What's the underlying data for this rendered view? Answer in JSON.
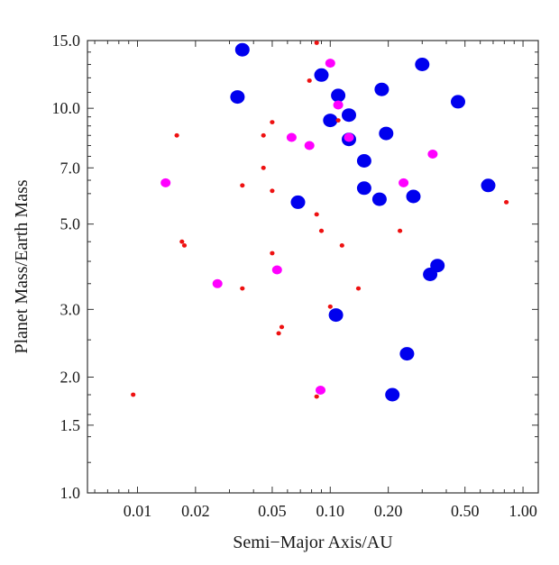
{
  "chart_data": {
    "type": "scatter",
    "title": "",
    "xlabel": "Semi−Major Axis/AU",
    "ylabel": "Planet Mass/Earth Mass",
    "xscale": "log",
    "yscale": "log",
    "xlim": [
      0.0055,
      1.2
    ],
    "ylim": [
      1.0,
      15.0
    ],
    "xticks": [
      {
        "value": 0.01,
        "label": "0.01"
      },
      {
        "value": 0.02,
        "label": "0.02"
      },
      {
        "value": 0.05,
        "label": "0.05"
      },
      {
        "value": 0.1,
        "label": "0.10"
      },
      {
        "value": 0.2,
        "label": "0.20"
      },
      {
        "value": 0.5,
        "label": "0.50"
      },
      {
        "value": 1.0,
        "label": "1.00"
      }
    ],
    "yticks": [
      {
        "value": 1.0,
        "label": "1.0"
      },
      {
        "value": 1.5,
        "label": "1.5"
      },
      {
        "value": 2.0,
        "label": "2.0"
      },
      {
        "value": 3.0,
        "label": "3.0"
      },
      {
        "value": 5.0,
        "label": "5.0"
      },
      {
        "value": 7.0,
        "label": "7.0"
      },
      {
        "value": 10.0,
        "label": "10.0"
      },
      {
        "value": 15.0,
        "label": "15.0"
      }
    ],
    "grid": false,
    "series": [
      {
        "color": "#0000ee",
        "marker_size": "large",
        "points": [
          [
            0.035,
            14.2
          ],
          [
            0.033,
            10.7
          ],
          [
            0.09,
            12.2
          ],
          [
            0.11,
            10.8
          ],
          [
            0.1,
            9.3
          ],
          [
            0.125,
            9.6
          ],
          [
            0.125,
            8.3
          ],
          [
            0.185,
            11.2
          ],
          [
            0.195,
            8.6
          ],
          [
            0.15,
            7.3
          ],
          [
            0.15,
            6.2
          ],
          [
            0.18,
            5.8
          ],
          [
            0.3,
            13.0
          ],
          [
            0.46,
            10.4
          ],
          [
            0.27,
            5.9
          ],
          [
            0.66,
            6.3
          ],
          [
            0.068,
            5.7
          ],
          [
            0.36,
            3.9
          ],
          [
            0.33,
            3.7
          ],
          [
            0.107,
            2.9
          ],
          [
            0.25,
            2.3
          ],
          [
            0.21,
            1.8
          ]
        ]
      },
      {
        "color": "#ff00ff",
        "marker_size": "medium",
        "points": [
          [
            0.1,
            13.1
          ],
          [
            0.11,
            10.2
          ],
          [
            0.063,
            8.4
          ],
          [
            0.078,
            8.0
          ],
          [
            0.125,
            8.4
          ],
          [
            0.34,
            7.6
          ],
          [
            0.24,
            6.4
          ],
          [
            0.014,
            6.4
          ],
          [
            0.053,
            3.8
          ],
          [
            0.026,
            3.5
          ],
          [
            0.089,
            1.85
          ]
        ]
      },
      {
        "color": "#ee1111",
        "marker_size": "small",
        "points": [
          [
            0.085,
            14.8
          ],
          [
            0.078,
            11.8
          ],
          [
            0.05,
            9.2
          ],
          [
            0.11,
            9.3
          ],
          [
            0.016,
            8.5
          ],
          [
            0.045,
            8.5
          ],
          [
            0.045,
            7.0
          ],
          [
            0.035,
            6.3
          ],
          [
            0.05,
            6.1
          ],
          [
            0.82,
            5.7
          ],
          [
            0.085,
            5.3
          ],
          [
            0.09,
            4.8
          ],
          [
            0.23,
            4.8
          ],
          [
            0.017,
            4.5
          ],
          [
            0.0175,
            4.4
          ],
          [
            0.115,
            4.4
          ],
          [
            0.05,
            4.2
          ],
          [
            0.035,
            3.4
          ],
          [
            0.14,
            3.4
          ],
          [
            0.1,
            3.05
          ],
          [
            0.056,
            2.7
          ],
          [
            0.054,
            2.6
          ],
          [
            0.0095,
            1.8
          ],
          [
            0.085,
            1.78
          ]
        ]
      }
    ]
  }
}
